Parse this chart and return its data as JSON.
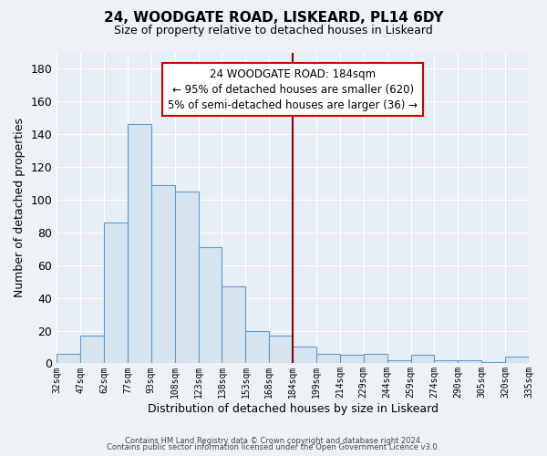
{
  "title": "24, WOODGATE ROAD, LISKEARD, PL14 6DY",
  "subtitle": "Size of property relative to detached houses in Liskeard",
  "xlabel": "Distribution of detached houses by size in Liskeard",
  "ylabel": "Number of detached properties",
  "bin_labels": [
    "32sqm",
    "47sqm",
    "62sqm",
    "77sqm",
    "93sqm",
    "108sqm",
    "123sqm",
    "138sqm",
    "153sqm",
    "168sqm",
    "184sqm",
    "199sqm",
    "214sqm",
    "229sqm",
    "244sqm",
    "259sqm",
    "274sqm",
    "290sqm",
    "305sqm",
    "320sqm",
    "335sqm"
  ],
  "bar_heights": [
    6,
    17,
    86,
    146,
    109,
    105,
    71,
    47,
    20,
    17,
    10,
    6,
    5,
    6,
    2,
    5,
    2,
    2,
    1,
    4
  ],
  "bar_color": "#d6e4f0",
  "bar_edge_color": "#5b9bd5",
  "ylim": [
    0,
    190
  ],
  "yticks": [
    0,
    20,
    40,
    60,
    80,
    100,
    120,
    140,
    160,
    180
  ],
  "vline_color": "#8b0000",
  "annotation_title": "24 WOODGATE ROAD: 184sqm",
  "annotation_line1": "← 95% of detached houses are smaller (620)",
  "annotation_line2": "5% of semi-detached houses are larger (36) →",
  "annotation_box_color": "#ffffff",
  "annotation_box_edge": "#cc0000",
  "footer1": "Contains HM Land Registry data © Crown copyright and database right 2024.",
  "footer2": "Contains public sector information licensed under the Open Government Licence v3.0.",
  "plot_bg_color": "#e8eef5",
  "fig_bg_color": "#eef2f7",
  "grid_color": "#ffffff"
}
